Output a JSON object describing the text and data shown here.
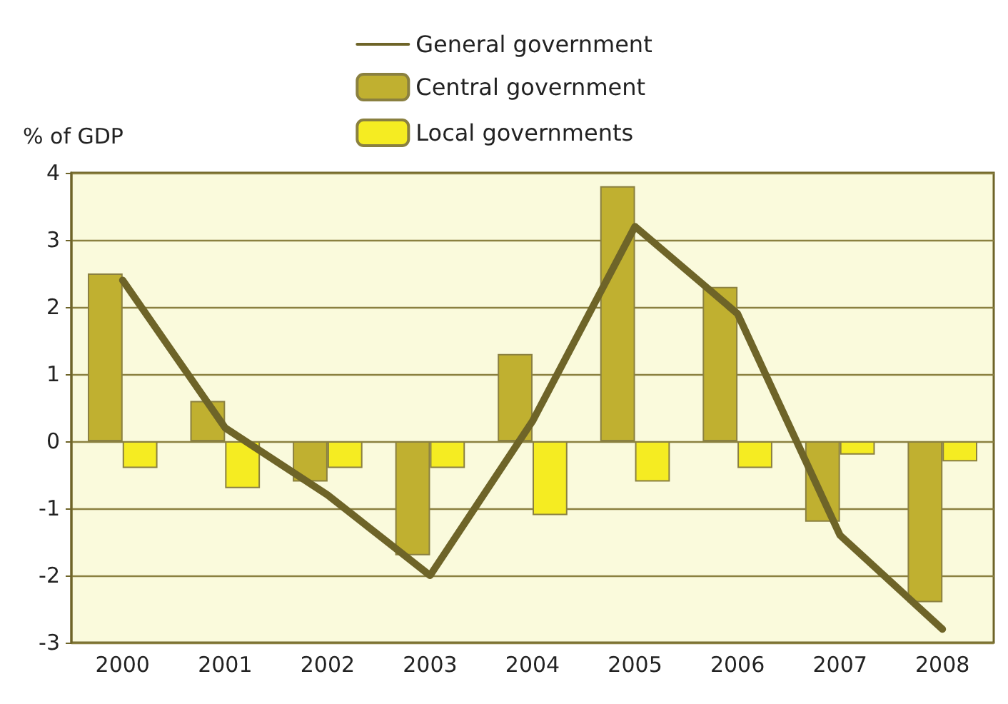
{
  "chart_data": {
    "type": "bar",
    "ylabel": "% of GDP",
    "categories": [
      "2000",
      "2001",
      "2002",
      "2003",
      "2004",
      "2005",
      "2006",
      "2007",
      "2008"
    ],
    "series": [
      {
        "name": "General government",
        "type": "line",
        "color": "#6e6428",
        "values": [
          2.4,
          0.2,
          -0.8,
          -2.0,
          0.3,
          3.2,
          1.9,
          -1.4,
          -2.8
        ]
      },
      {
        "name": "Central government",
        "color": "#c0b030",
        "values": [
          2.5,
          0.6,
          -0.6,
          -1.7,
          1.3,
          3.8,
          2.3,
          -1.2,
          -2.4
        ]
      },
      {
        "name": "Local governments",
        "color": "#f5ec22",
        "values": [
          -0.4,
          -0.7,
          -0.4,
          -0.4,
          -1.1,
          -0.6,
          -0.4,
          -0.2,
          -0.3
        ]
      }
    ],
    "ylim": [
      -3,
      4
    ],
    "yticks": [
      -3,
      -2,
      -1,
      0,
      1,
      2,
      3,
      4
    ],
    "grid": "y",
    "legend": "top",
    "marker": "none",
    "line_style": "solid"
  }
}
